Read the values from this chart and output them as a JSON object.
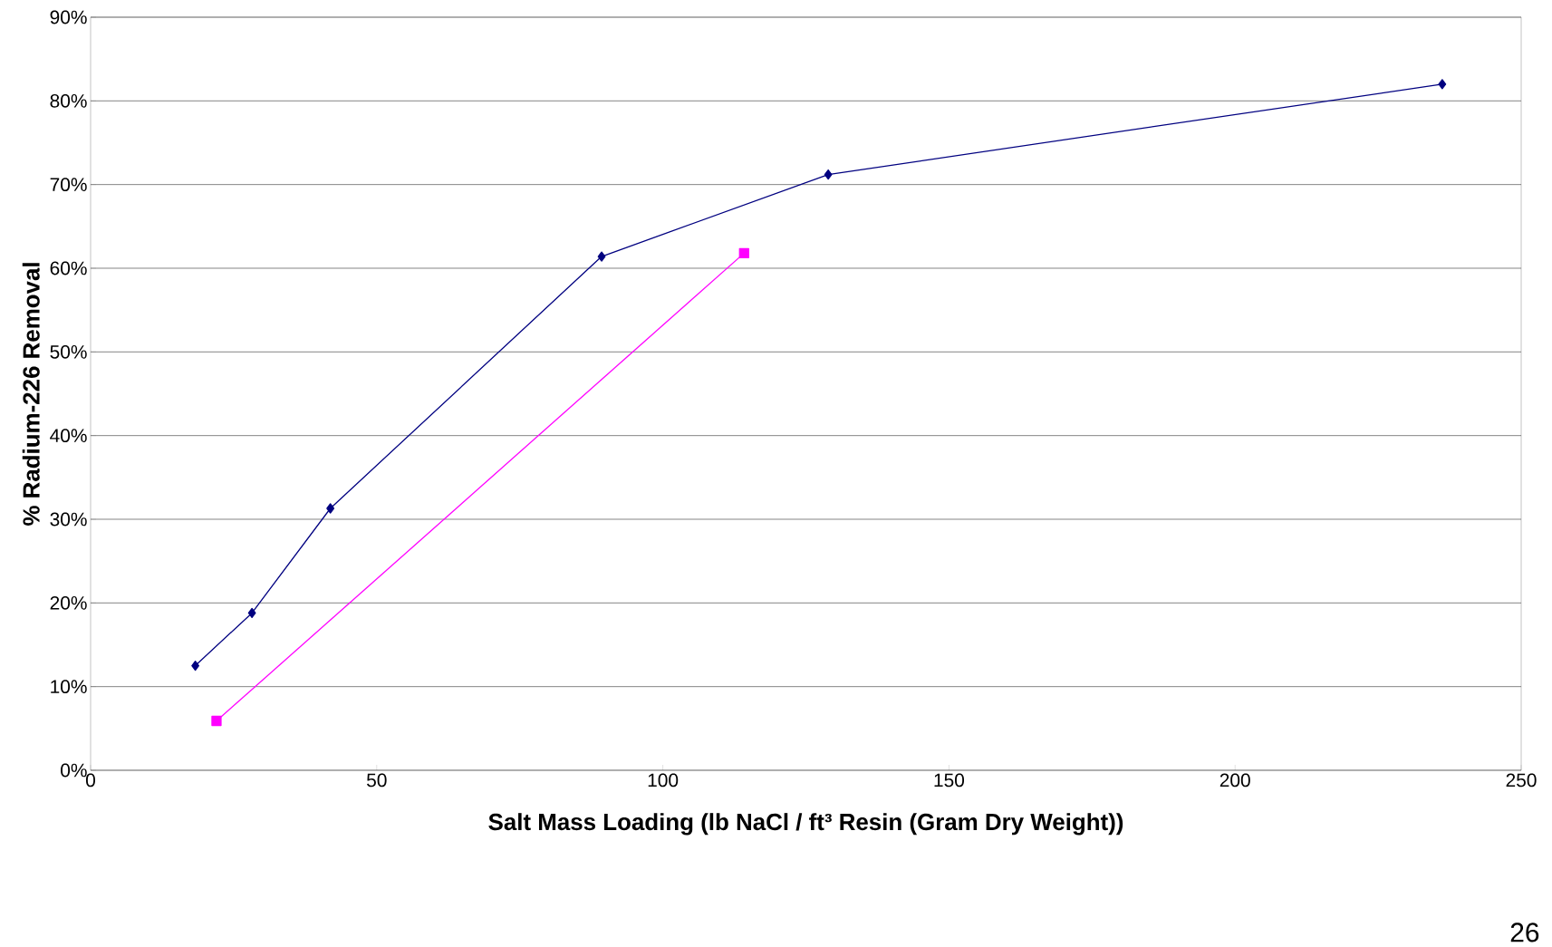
{
  "chart_data": {
    "type": "line",
    "xlabel": "Salt Mass Loading (lb NaCl / ft³ Resin (Gram Dry Weight))",
    "ylabel": "% Radium-226 Removal",
    "xlim": [
      0,
      250
    ],
    "xticks": [
      0,
      50,
      100,
      150,
      200,
      250
    ],
    "ylim": [
      0,
      90
    ],
    "yticks": [
      {
        "value": 0,
        "label": "0%"
      },
      {
        "value": 10,
        "label": "10%"
      },
      {
        "value": 20,
        "label": "20%"
      },
      {
        "value": 30,
        "label": "30%"
      },
      {
        "value": 40,
        "label": "40%"
      },
      {
        "value": 50,
        "label": "50%"
      },
      {
        "value": 60,
        "label": "60%"
      },
      {
        "value": 70,
        "label": "70%"
      },
      {
        "value": 80,
        "label": "80%"
      },
      {
        "value": 90,
        "label": "90%"
      }
    ],
    "grid": "y",
    "line_style": "solid",
    "series": [
      {
        "color": "#000080",
        "marker": "diamond",
        "x": [
          18.3,
          28.2,
          41.9,
          89.3,
          128.9,
          236.2
        ],
        "values": [
          12.5,
          18.8,
          31.3,
          61.4,
          71.2,
          82.0
        ]
      },
      {
        "color": "#ff00ff",
        "marker": "square",
        "x": [
          22.0,
          114.2
        ],
        "values": [
          5.9,
          61.8
        ]
      }
    ],
    "annotations": [
      "26"
    ]
  }
}
